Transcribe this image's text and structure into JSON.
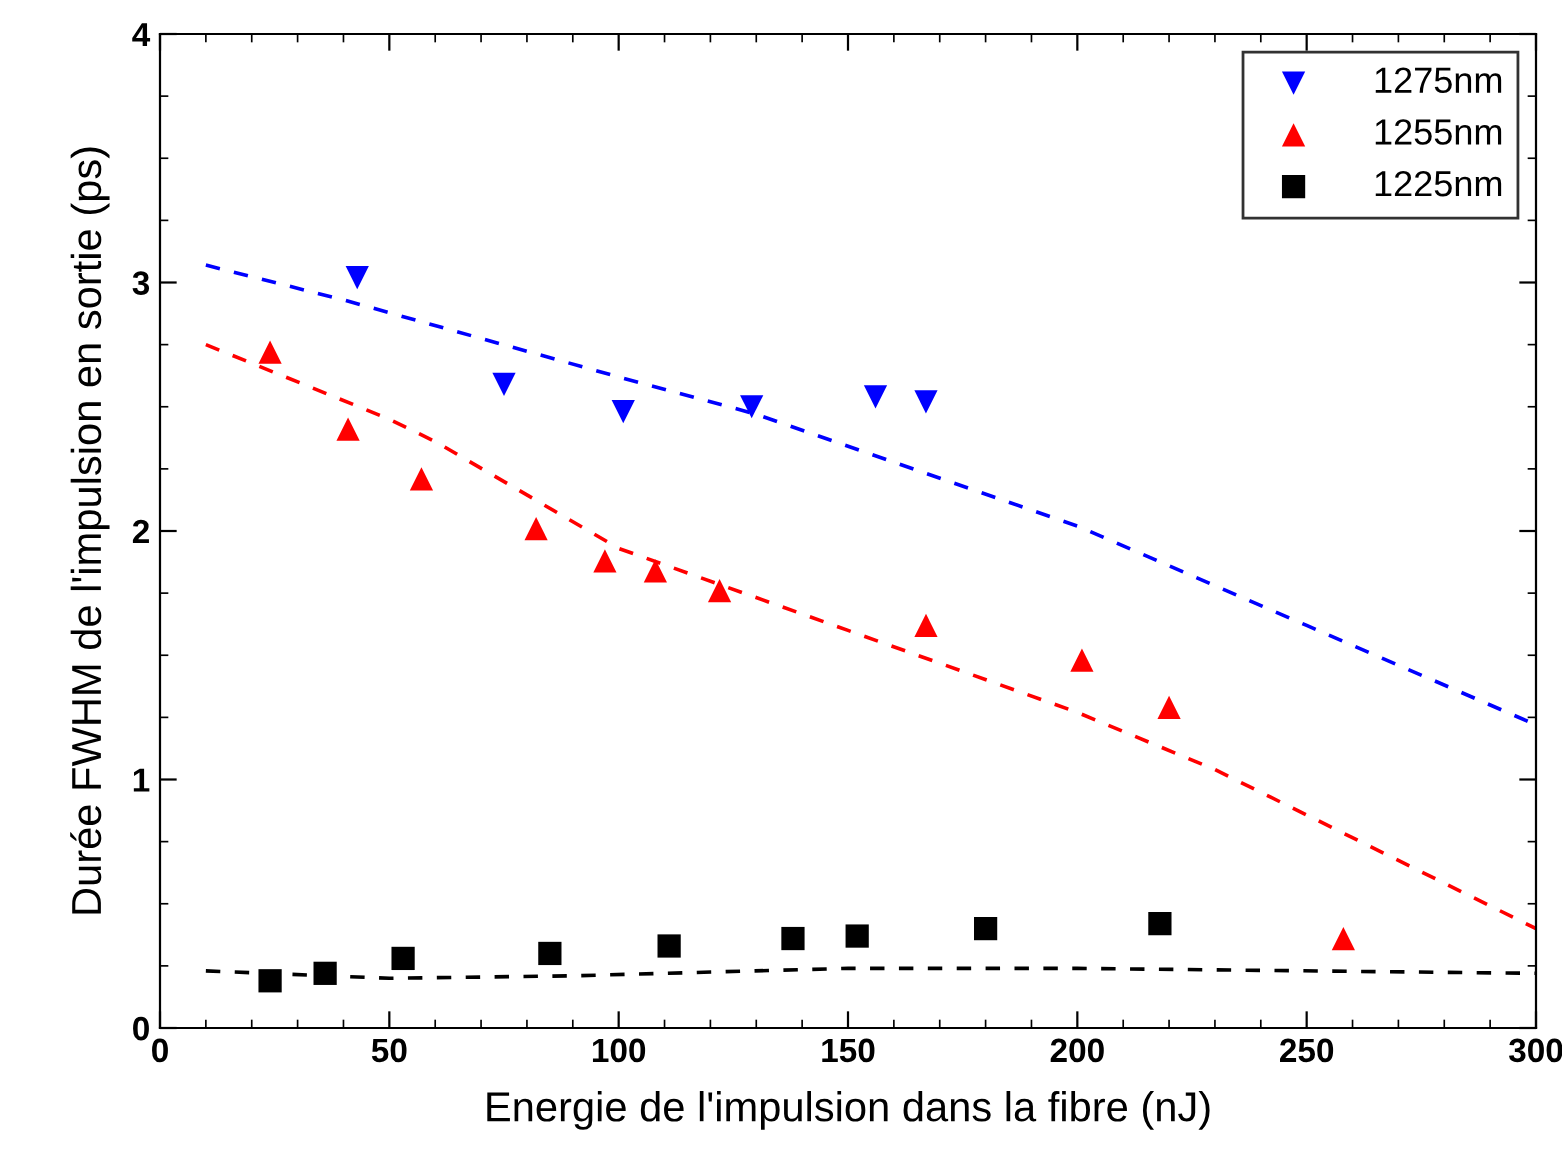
{
  "chart_data": {
    "type": "scatter",
    "xlabel": "Energie de l'impulsion dans la fibre (nJ)",
    "ylabel": "Durée FWHM de l'impulsion en sortie (ps)",
    "xlim": [
      0,
      300
    ],
    "xticks": [
      0,
      50,
      100,
      150,
      200,
      250,
      300
    ],
    "ylim": [
      0,
      4
    ],
    "yticks": [
      0,
      1,
      2,
      3,
      4
    ],
    "grid": false,
    "legend": "top right",
    "series": [
      {
        "name": "1275nm",
        "color": "#0000ff",
        "marker": "triangle_down",
        "x": [
          43,
          75,
          101,
          129,
          156,
          167
        ],
        "values": [
          3.02,
          2.59,
          2.48,
          2.5,
          2.54,
          2.52
        ]
      },
      {
        "name": "1255nm",
        "color": "#ff0000",
        "marker": "triangle",
        "x": [
          24,
          41,
          57,
          82,
          97,
          108,
          122,
          167,
          201,
          220,
          258
        ],
        "values": [
          2.72,
          2.41,
          2.21,
          2.01,
          1.88,
          1.84,
          1.76,
          1.62,
          1.48,
          1.29,
          0.36
        ]
      },
      {
        "name": "1225nm",
        "color": "#000000",
        "marker": "square",
        "x": [
          24,
          36,
          53,
          85,
          111,
          138,
          152,
          180,
          218
        ],
        "values": [
          0.19,
          0.22,
          0.28,
          0.3,
          0.33,
          0.36,
          0.37,
          0.4,
          0.42
        ]
      },
      {
        "type": "line",
        "color": "#0000ff",
        "line_style": "dashed",
        "marker": "none",
        "x": [
          10,
          40,
          100,
          130,
          200,
          250,
          300
        ],
        "values": [
          3.07,
          2.93,
          2.62,
          2.47,
          2.02,
          1.62,
          1.22
        ]
      },
      {
        "type": "line",
        "color": "#ff0000",
        "line_style": "dashed",
        "marker": "none",
        "x": [
          10,
          50,
          60,
          100,
          150,
          200,
          230,
          300
        ],
        "values": [
          2.75,
          2.45,
          2.36,
          1.93,
          1.6,
          1.27,
          1.04,
          0.4
        ]
      },
      {
        "type": "line",
        "color": "#000000",
        "line_style": "dashed",
        "marker": "none",
        "x": [
          10,
          50,
          90,
          150,
          200,
          300
        ],
        "values": [
          0.23,
          0.2,
          0.21,
          0.24,
          0.24,
          0.22
        ]
      }
    ]
  }
}
